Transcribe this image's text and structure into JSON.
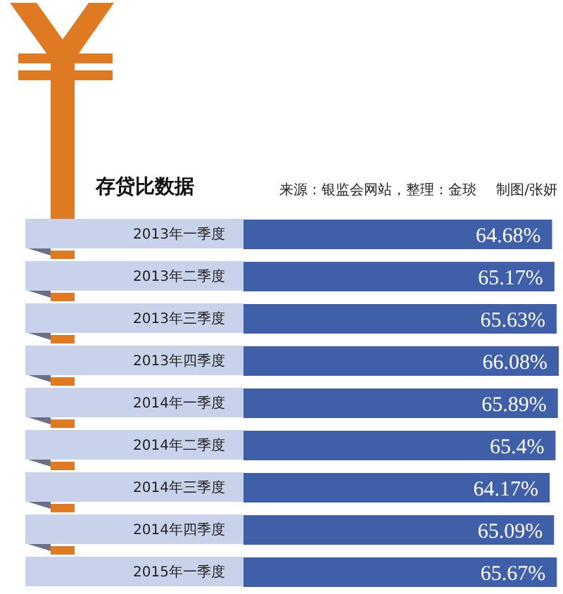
{
  "chart_data": {
    "type": "bar",
    "orientation": "horizontal",
    "title": "存贷比数据",
    "annotations": [
      "来源：银监会网站，整理：金琰",
      "制图/张妍"
    ],
    "categories": [
      "2013年一季度",
      "2013年二季度",
      "2013年三季度",
      "2013年四季度",
      "2014年一季度",
      "2014年二季度",
      "2014年三季度",
      "2014年四季度",
      "2015年一季度"
    ],
    "values": [
      64.68,
      65.17,
      65.63,
      66.08,
      65.89,
      65.4,
      64.17,
      65.09,
      65.67
    ],
    "value_labels": [
      "64.68%",
      "65.17%",
      "65.63%",
      "66.08%",
      "65.89%",
      "65.4%",
      "64.17%",
      "65.09%",
      "65.67%"
    ],
    "color": "#3f5fa8",
    "tick_labels": "y"
  }
}
